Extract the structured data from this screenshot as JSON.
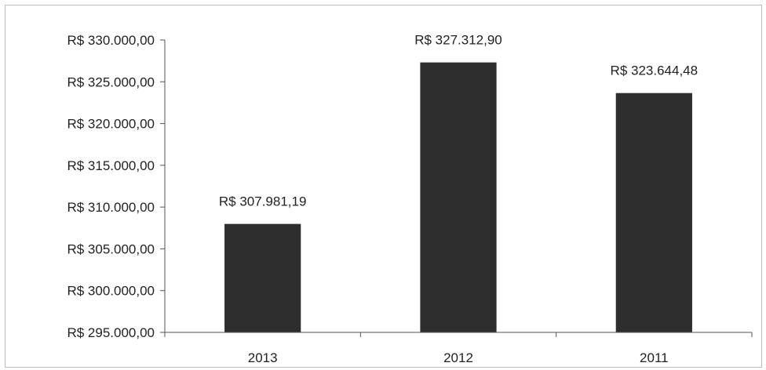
{
  "chart_data": {
    "type": "bar",
    "title": "",
    "xlabel": "",
    "ylabel": "",
    "categories": [
      "2013",
      "2012",
      "2011"
    ],
    "values": [
      307981.19,
      327312.9,
      323644.48
    ],
    "data_labels": [
      "R$ 307.981,19",
      "R$ 327.312,90",
      "R$ 323.644,48"
    ],
    "ylim": [
      295000,
      330000
    ],
    "yticks": [
      295000,
      300000,
      305000,
      310000,
      315000,
      320000,
      325000,
      330000
    ],
    "ytick_labels": [
      "R$ 295.000,00",
      "R$ 300.000,00",
      "R$ 305.000,00",
      "R$ 310.000,00",
      "R$ 315.000,00",
      "R$ 320.000,00",
      "R$ 325.000,00",
      "R$ 330.000,00"
    ],
    "grid": false,
    "legend": "none",
    "colors": {
      "bar": "#2e2e2e",
      "axis": "#555555",
      "frame": "#bdbdbd",
      "text": "#222222"
    }
  }
}
